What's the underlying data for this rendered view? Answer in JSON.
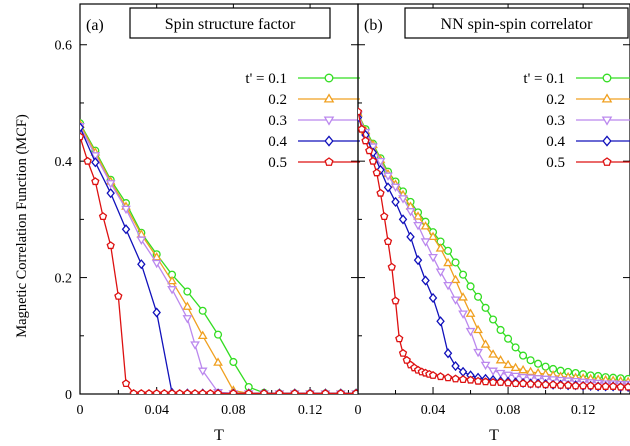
{
  "figure": {
    "ylabel": "Magnetic Correlation Function (MCF)",
    "xlabel": "T"
  },
  "legend_entries": [
    {
      "label": "t' = 0.1",
      "color": "#33dd22",
      "marker": "circle"
    },
    {
      "label": "0.2",
      "color": "#f0a020",
      "marker": "triangle-up"
    },
    {
      "label": "0.3",
      "color": "#bb88ee",
      "marker": "triangle-down"
    },
    {
      "label": "0.4",
      "color": "#1111bb",
      "marker": "diamond"
    },
    {
      "label": "0.5",
      "color": "#dd1111",
      "marker": "pentagon"
    }
  ],
  "chart_data": [
    {
      "type": "line",
      "panel_tag": "(a)",
      "title": "Spin structure factor",
      "xlabel": "T",
      "ylabel": "Magnetic Correlation Function (MCF)",
      "xlim": [
        0,
        0.145
      ],
      "ylim": [
        0,
        0.67
      ],
      "xticks": [
        0,
        0.04,
        0.08,
        0.12
      ],
      "xtick_labels": [
        "0",
        "0.04",
        "0.08",
        "0.12"
      ],
      "yticks": [
        0,
        0.2,
        0.4,
        0.6
      ],
      "ytick_labels": [
        "0",
        "0.2",
        "0.4",
        "0.6"
      ],
      "legend_position": "right",
      "series": [
        {
          "name": "t' = 0.1",
          "x": [
            0,
            0.008,
            0.016,
            0.024,
            0.032,
            0.04,
            0.048,
            0.056,
            0.064,
            0.072,
            0.08,
            0.088,
            0.096,
            0.104,
            0.112,
            0.12,
            0.128,
            0.136,
            0.144
          ],
          "y": [
            0.465,
            0.418,
            0.368,
            0.328,
            0.277,
            0.24,
            0.205,
            0.176,
            0.143,
            0.102,
            0.055,
            0.012,
            0.002,
            0.001,
            0.001,
            0.001,
            0.001,
            0.001,
            0.001
          ]
        },
        {
          "name": "0.2",
          "x": [
            0,
            0.008,
            0.016,
            0.024,
            0.032,
            0.04,
            0.048,
            0.056,
            0.064,
            0.072,
            0.08,
            0.088,
            0.096,
            0.104,
            0.112,
            0.12,
            0.128,
            0.136,
            0.144
          ],
          "y": [
            0.463,
            0.415,
            0.365,
            0.322,
            0.274,
            0.235,
            0.194,
            0.15,
            0.1,
            0.054,
            0.006,
            0.001,
            0.001,
            0.001,
            0.001,
            0.001,
            0.001,
            0.001,
            0.001
          ]
        },
        {
          "name": "0.3",
          "x": [
            0,
            0.008,
            0.016,
            0.024,
            0.032,
            0.04,
            0.048,
            0.056,
            0.06,
            0.064,
            0.072,
            0.08,
            0.088,
            0.096,
            0.104,
            0.112,
            0.12,
            0.128,
            0.136,
            0.144
          ],
          "y": [
            0.46,
            0.41,
            0.362,
            0.318,
            0.265,
            0.225,
            0.18,
            0.13,
            0.085,
            0.04,
            0.003,
            0.001,
            0.001,
            0.001,
            0.001,
            0.001,
            0.001,
            0.001,
            0.001,
            0.001
          ]
        },
        {
          "name": "0.4",
          "x": [
            0,
            0.008,
            0.016,
            0.024,
            0.032,
            0.04,
            0.048,
            0.056,
            0.064,
            0.072,
            0.08,
            0.088,
            0.096,
            0.104,
            0.112,
            0.12,
            0.128,
            0.136,
            0.144
          ],
          "y": [
            0.458,
            0.398,
            0.345,
            0.283,
            0.223,
            0.14,
            0.002,
            0.001,
            0.001,
            0.001,
            0.001,
            0.001,
            0.001,
            0.001,
            0.001,
            0.001,
            0.001,
            0.001,
            0.001
          ]
        },
        {
          "name": "0.5",
          "x": [
            0,
            0.004,
            0.008,
            0.012,
            0.016,
            0.02,
            0.024,
            0.028,
            0.032,
            0.036,
            0.04,
            0.044,
            0.048,
            0.052,
            0.056,
            0.06,
            0.064,
            0.068,
            0.072,
            0.08,
            0.088,
            0.096,
            0.104,
            0.112,
            0.12,
            0.128,
            0.136,
            0.144
          ],
          "y": [
            0.442,
            0.4,
            0.365,
            0.305,
            0.255,
            0.168,
            0.018,
            0.001,
            0.001,
            0.001,
            0.001,
            0.001,
            0.001,
            0.001,
            0.001,
            0.001,
            0.001,
            0.001,
            0.001,
            0.001,
            0.001,
            0.001,
            0.001,
            0.001,
            0.001,
            0.001,
            0.001,
            0.001
          ]
        }
      ]
    },
    {
      "type": "line",
      "panel_tag": "(b)",
      "title": "NN spin-spin correlator",
      "xlabel": "T",
      "ylabel": "",
      "xlim": [
        0,
        0.145
      ],
      "ylim": [
        0,
        0.67
      ],
      "xticks": [
        0,
        0.04,
        0.08,
        0.12
      ],
      "xtick_labels": [
        "0",
        "0.04",
        "0.08",
        "0.12"
      ],
      "yticks": [
        0,
        0.2,
        0.4,
        0.6
      ],
      "ytick_labels": [],
      "legend_position": "right",
      "series": [
        {
          "name": "t' = 0.1",
          "x": [
            0,
            0.004,
            0.008,
            0.012,
            0.016,
            0.02,
            0.024,
            0.028,
            0.032,
            0.036,
            0.04,
            0.044,
            0.048,
            0.052,
            0.056,
            0.06,
            0.064,
            0.068,
            0.072,
            0.076,
            0.08,
            0.084,
            0.088,
            0.092,
            0.096,
            0.1,
            0.104,
            0.108,
            0.112,
            0.116,
            0.12,
            0.124,
            0.128,
            0.132,
            0.136,
            0.14,
            0.144
          ],
          "y": [
            0.482,
            0.455,
            0.43,
            0.405,
            0.382,
            0.365,
            0.348,
            0.33,
            0.312,
            0.296,
            0.278,
            0.262,
            0.246,
            0.226,
            0.205,
            0.185,
            0.167,
            0.148,
            0.128,
            0.11,
            0.095,
            0.08,
            0.066,
            0.058,
            0.052,
            0.047,
            0.043,
            0.04,
            0.038,
            0.036,
            0.034,
            0.032,
            0.031,
            0.029,
            0.028,
            0.027,
            0.026
          ]
        },
        {
          "name": "0.2",
          "x": [
            0,
            0.004,
            0.008,
            0.012,
            0.016,
            0.02,
            0.024,
            0.028,
            0.032,
            0.036,
            0.04,
            0.044,
            0.048,
            0.052,
            0.056,
            0.06,
            0.064,
            0.068,
            0.072,
            0.076,
            0.08,
            0.084,
            0.088,
            0.092,
            0.096,
            0.1,
            0.104,
            0.108,
            0.112,
            0.116,
            0.12,
            0.124,
            0.128,
            0.132,
            0.136,
            0.14,
            0.144
          ],
          "y": [
            0.482,
            0.452,
            0.428,
            0.402,
            0.378,
            0.36,
            0.342,
            0.322,
            0.305,
            0.288,
            0.27,
            0.25,
            0.225,
            0.196,
            0.166,
            0.138,
            0.11,
            0.085,
            0.068,
            0.058,
            0.05,
            0.045,
            0.041,
            0.038,
            0.036,
            0.034,
            0.032,
            0.03,
            0.029,
            0.028,
            0.027,
            0.026,
            0.025,
            0.024,
            0.023,
            0.022,
            0.021
          ]
        },
        {
          "name": "0.3",
          "x": [
            0,
            0.004,
            0.008,
            0.012,
            0.016,
            0.02,
            0.024,
            0.028,
            0.032,
            0.036,
            0.04,
            0.044,
            0.048,
            0.052,
            0.056,
            0.06,
            0.064,
            0.068,
            0.072,
            0.076,
            0.08,
            0.084,
            0.088,
            0.092,
            0.096,
            0.1,
            0.104,
            0.108,
            0.112,
            0.116,
            0.12,
            0.124,
            0.128,
            0.132,
            0.136,
            0.14,
            0.144
          ],
          "y": [
            0.48,
            0.45,
            0.425,
            0.4,
            0.375,
            0.356,
            0.336,
            0.314,
            0.29,
            0.262,
            0.235,
            0.21,
            0.187,
            0.162,
            0.138,
            0.108,
            0.072,
            0.05,
            0.04,
            0.036,
            0.033,
            0.031,
            0.029,
            0.028,
            0.027,
            0.026,
            0.025,
            0.024,
            0.023,
            0.022,
            0.021,
            0.02,
            0.019,
            0.018,
            0.018,
            0.017,
            0.017
          ]
        },
        {
          "name": "0.4",
          "x": [
            0,
            0.004,
            0.008,
            0.012,
            0.016,
            0.02,
            0.024,
            0.028,
            0.032,
            0.036,
            0.04,
            0.044,
            0.048,
            0.052,
            0.056,
            0.06,
            0.064,
            0.068,
            0.072,
            0.076,
            0.08,
            0.084,
            0.088,
            0.092,
            0.096,
            0.1,
            0.104,
            0.108,
            0.112,
            0.116,
            0.12,
            0.124,
            0.128,
            0.132,
            0.136,
            0.14,
            0.144
          ],
          "y": [
            0.475,
            0.445,
            0.415,
            0.385,
            0.355,
            0.33,
            0.3,
            0.27,
            0.23,
            0.195,
            0.165,
            0.125,
            0.07,
            0.048,
            0.038,
            0.032,
            0.028,
            0.026,
            0.024,
            0.022,
            0.021,
            0.02,
            0.019,
            0.018,
            0.018,
            0.017,
            0.016,
            0.016,
            0.015,
            0.015,
            0.014,
            0.014,
            0.013,
            0.013,
            0.013,
            0.012,
            0.012
          ]
        },
        {
          "name": "0.5",
          "x": [
            0,
            0.002,
            0.004,
            0.006,
            0.008,
            0.01,
            0.012,
            0.014,
            0.016,
            0.018,
            0.02,
            0.022,
            0.024,
            0.026,
            0.028,
            0.03,
            0.032,
            0.034,
            0.036,
            0.038,
            0.04,
            0.044,
            0.048,
            0.052,
            0.056,
            0.06,
            0.064,
            0.068,
            0.072,
            0.076,
            0.08,
            0.084,
            0.088,
            0.092,
            0.096,
            0.1,
            0.104,
            0.108,
            0.112,
            0.116,
            0.12,
            0.124,
            0.128,
            0.132,
            0.136,
            0.14,
            0.144
          ],
          "y": [
            0.485,
            0.455,
            0.435,
            0.418,
            0.4,
            0.38,
            0.345,
            0.305,
            0.262,
            0.218,
            0.16,
            0.095,
            0.07,
            0.058,
            0.05,
            0.045,
            0.041,
            0.038,
            0.036,
            0.034,
            0.032,
            0.03,
            0.028,
            0.026,
            0.025,
            0.024,
            0.022,
            0.021,
            0.02,
            0.02,
            0.019,
            0.018,
            0.018,
            0.017,
            0.017,
            0.016,
            0.016,
            0.015,
            0.015,
            0.014,
            0.014,
            0.014,
            0.013,
            0.013,
            0.013,
            0.012,
            0.012
          ]
        }
      ]
    }
  ]
}
